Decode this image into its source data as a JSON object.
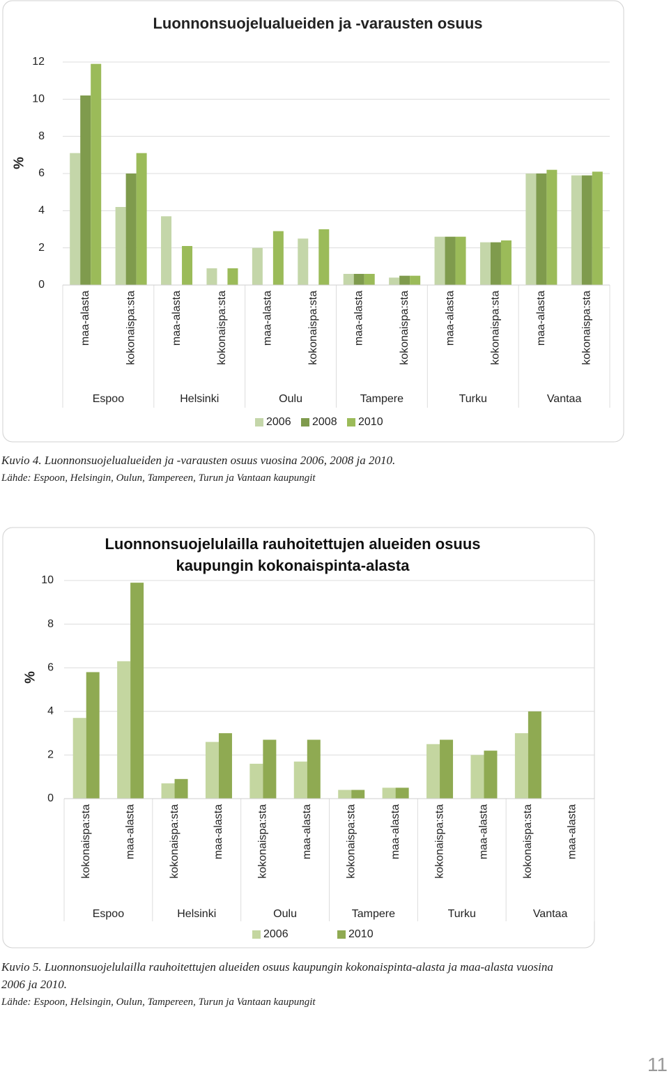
{
  "chart_data": [
    {
      "type": "bar",
      "title": "Luonnonsuojelualueiden ja -varausten osuus",
      "y_label": "%",
      "categories": [
        "maa-alasta",
        "kokonaispa:sta",
        "maa-alasta",
        "kokonaispa:sta",
        "maa-alasta",
        "kokonaispa:sta",
        "maa-alasta",
        "kokonaispa:sta",
        "maa-alasta",
        "kokonaispa:sta",
        "maa-alasta",
        "kokonaispa:sta"
      ],
      "groups": [
        "Espoo",
        "Helsinki",
        "Oulu",
        "Tampere",
        "Turku",
        "Vantaa"
      ],
      "series": [
        {
          "name": "2006",
          "color": "#c4d6a9",
          "values": [
            7.1,
            4.2,
            3.7,
            0.9,
            2.0,
            2.5,
            0.6,
            0.4,
            2.6,
            2.3,
            6.0,
            5.9
          ]
        },
        {
          "name": "2008",
          "color": "#7f9b4d",
          "values": [
            10.2,
            6.0,
            null,
            null,
            null,
            null,
            0.6,
            0.5,
            2.6,
            2.3,
            6.0,
            5.9
          ]
        },
        {
          "name": "2010",
          "color": "#9bbb59",
          "values": [
            11.9,
            7.1,
            2.1,
            0.9,
            2.9,
            3.0,
            0.6,
            0.5,
            2.6,
            2.4,
            6.2,
            6.1
          ]
        }
      ],
      "ylim": [
        0,
        12
      ],
      "yticks": [
        0,
        2,
        4,
        6,
        8,
        10,
        12
      ],
      "grid": true
    },
    {
      "type": "bar",
      "title": "Luonnonsuojelulailla rauhoitettujen alueiden osuus kaupungin kokonaispinta-alasta",
      "y_label": "%",
      "categories": [
        "kokonaispa:sta",
        "maa-alasta",
        "kokonaispa:sta",
        "maa-alasta",
        "kokonaispa:sta",
        "maa-alasta",
        "kokonaispa:sta",
        "maa-alasta",
        "kokonaispa:sta",
        "maa-alasta",
        "kokonaispa:sta",
        "maa-alasta"
      ],
      "groups": [
        "Espoo",
        "Helsinki",
        "Oulu",
        "Tampere",
        "Turku",
        "Vantaa"
      ],
      "series": [
        {
          "name": "2006",
          "color": "#c4d6a0",
          "values": [
            3.7,
            6.3,
            0.7,
            2.6,
            1.6,
            1.7,
            0.4,
            0.5,
            2.5,
            2.0,
            3.0,
            null
          ]
        },
        {
          "name": "2010",
          "color": "#8faa52",
          "values": [
            5.8,
            9.9,
            0.9,
            3.0,
            2.7,
            2.7,
            0.4,
            0.5,
            2.7,
            2.2,
            4.0,
            null
          ]
        }
      ],
      "ylim": [
        0,
        10
      ],
      "yticks": [
        0,
        2,
        4,
        6,
        8,
        10
      ],
      "grid": true
    }
  ],
  "captions": [
    {
      "caption": "Kuvio 4. Luonnonsuojelualueiden ja -varausten osuus vuosina 2006, 2008 ja 2010.",
      "source": "Lähde: Espoon, Helsingin, Oulun, Tampereen, Turun ja Vantaan kaupungit"
    },
    {
      "caption": "Kuvio 5. Luonnonsuojelulailla rauhoitettujen alueiden osuus kaupungin kokonaispinta-alasta ja maa-alasta vuosina 2006 ja 2010.",
      "source": "Lähde: Espoon, Helsingin, Oulun, Tampereen, Turun ja Vantaan kaupungit"
    }
  ],
  "page_number": "11"
}
